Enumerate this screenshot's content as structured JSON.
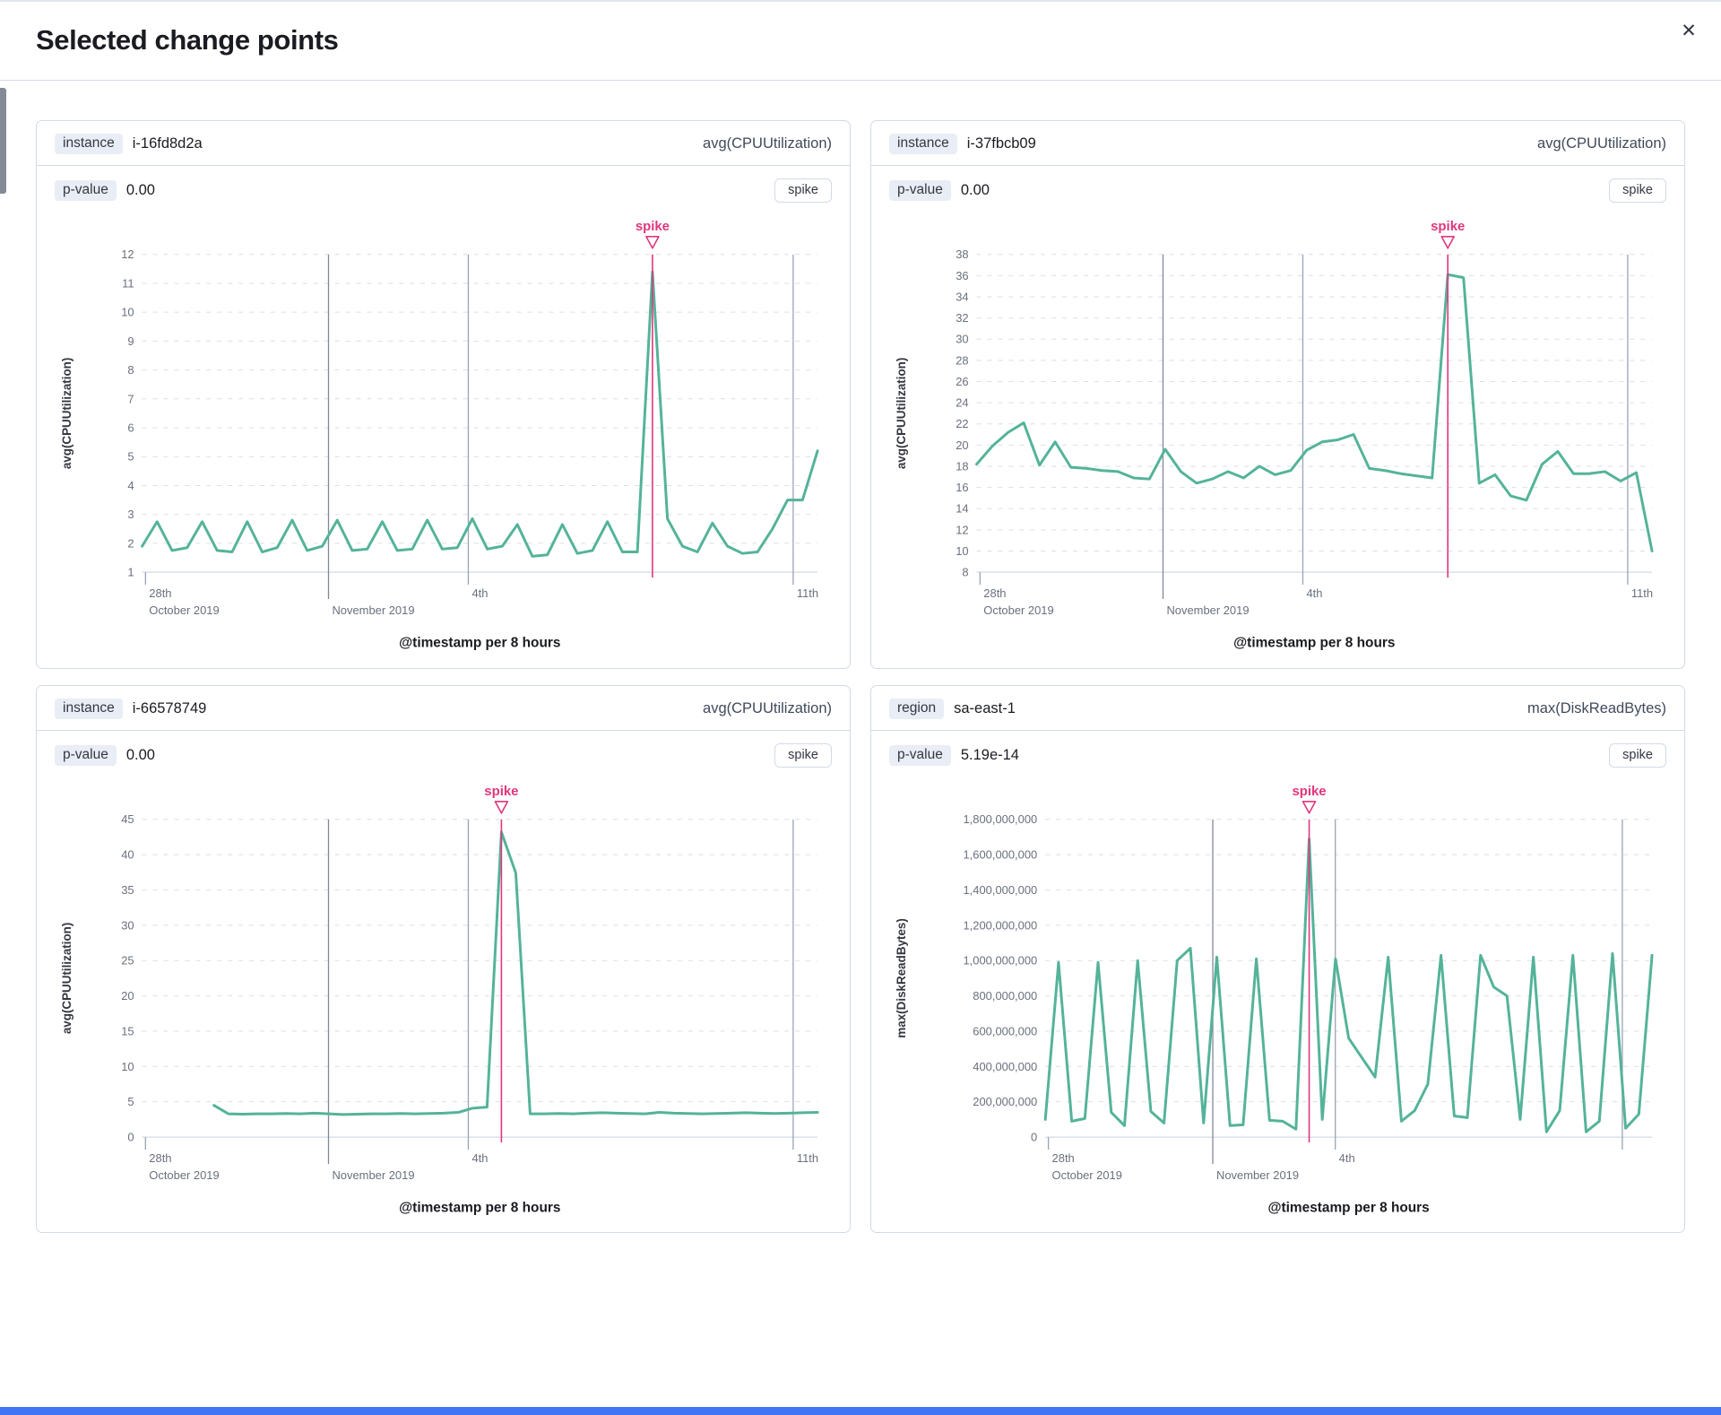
{
  "modal": {
    "title": "Selected change points",
    "close_icon": "✕"
  },
  "panels": [
    {
      "key_label": "instance",
      "key_value": "i-16fd8d2a",
      "metric": "avg(CPUUtilization)",
      "p_label": "p-value",
      "p_value": "0.00",
      "type_badge": "spike"
    },
    {
      "key_label": "instance",
      "key_value": "i-37fbcb09",
      "metric": "avg(CPUUtilization)",
      "p_label": "p-value",
      "p_value": "0.00",
      "type_badge": "spike"
    },
    {
      "key_label": "instance",
      "key_value": "i-66578749",
      "metric": "avg(CPUUtilization)",
      "p_label": "p-value",
      "p_value": "0.00",
      "type_badge": "spike"
    },
    {
      "key_label": "region",
      "key_value": "sa-east-1",
      "metric": "max(DiskReadBytes)",
      "p_label": "p-value",
      "p_value": "5.19e-14",
      "type_badge": "spike"
    }
  ],
  "colors": {
    "series_green": "#54b399",
    "annotation_pink": "#e0367e",
    "gridline": "#d9dee8",
    "axis_line": "#d3dae6",
    "month_line": "#82889a",
    "tick_line": "#9aa3b5",
    "tick_text": "#69707d",
    "axis_text": "#1a1c21",
    "bottom_bar_blue": "#4076f5",
    "left_sliver_gray": "#848a96"
  },
  "chart_data": [
    {
      "type": "line",
      "title": "",
      "series_name": "avg(CPUUtilization)",
      "ylabel": "avg(CPUUtilization)",
      "xlabel": "@timestamp per 8 hours",
      "ylim": [
        1,
        12
      ],
      "ytick_step": 1,
      "ytick_format": "plain",
      "grid": true,
      "legend": false,
      "xticks": [
        {
          "frac": 0.005,
          "line": false,
          "row1": "28th",
          "row2": "October 2019"
        },
        {
          "frac": 0.276,
          "line": true,
          "row2": "November 2019"
        },
        {
          "frac": 0.483,
          "line": true,
          "row1": "4th"
        },
        {
          "frac": 0.964,
          "line": true,
          "row1": "11th"
        }
      ],
      "values": [
        1.9,
        2.75,
        1.75,
        1.85,
        2.75,
        1.75,
        1.7,
        2.75,
        1.7,
        1.85,
        2.8,
        1.75,
        1.9,
        2.8,
        1.75,
        1.8,
        2.75,
        1.75,
        1.8,
        2.8,
        1.8,
        1.85,
        2.85,
        1.8,
        1.9,
        2.65,
        1.55,
        1.6,
        2.65,
        1.65,
        1.75,
        2.75,
        1.7,
        1.7,
        11.4,
        2.85,
        1.9,
        1.7,
        2.7,
        1.9,
        1.65,
        1.7,
        2.5,
        3.5,
        3.5,
        5.2
      ],
      "annotation": {
        "label": "spike",
        "index": 34
      }
    },
    {
      "type": "line",
      "title": "",
      "series_name": "avg(CPUUtilization)",
      "ylabel": "avg(CPUUtilization)",
      "xlabel": "@timestamp per 8 hours",
      "ylim": [
        8,
        38
      ],
      "ytick_step": 2,
      "ytick_format": "plain",
      "grid": true,
      "legend": false,
      "xticks": [
        {
          "frac": 0.005,
          "line": false,
          "row1": "28th",
          "row2": "October 2019"
        },
        {
          "frac": 0.276,
          "line": true,
          "row2": "November 2019"
        },
        {
          "frac": 0.483,
          "line": true,
          "row1": "4th"
        },
        {
          "frac": 0.964,
          "line": true,
          "row1": "11th"
        }
      ],
      "values": [
        18.2,
        19.9,
        21.2,
        22.1,
        18.1,
        20.3,
        17.9,
        17.8,
        17.6,
        17.5,
        16.9,
        16.8,
        19.6,
        17.5,
        16.4,
        16.8,
        17.5,
        16.9,
        18.0,
        17.2,
        17.6,
        19.5,
        20.3,
        20.5,
        21.0,
        17.8,
        17.6,
        17.3,
        17.1,
        16.9,
        36.1,
        35.8,
        16.4,
        17.2,
        15.2,
        14.8,
        18.2,
        19.4,
        17.3,
        17.3,
        17.5,
        16.6,
        17.4,
        10.0
      ],
      "annotation": {
        "label": "spike",
        "index": 30
      }
    },
    {
      "type": "line",
      "title": "",
      "series_name": "avg(CPUUtilization)",
      "ylabel": "avg(CPUUtilization)",
      "xlabel": "@timestamp per 8 hours",
      "ylim": [
        0,
        45
      ],
      "ytick_step": 5,
      "ytick_format": "plain",
      "grid": true,
      "legend": false,
      "xticks": [
        {
          "frac": 0.005,
          "line": false,
          "row1": "28th",
          "row2": "October 2019"
        },
        {
          "frac": 0.276,
          "line": true,
          "row2": "November 2019"
        },
        {
          "frac": 0.483,
          "line": true,
          "row1": "4th"
        },
        {
          "frac": 0.964,
          "line": true,
          "row1": "11th"
        }
      ],
      "values": [
        null,
        null,
        null,
        null,
        null,
        4.5,
        3.3,
        3.25,
        3.3,
        3.3,
        3.35,
        3.3,
        3.4,
        3.3,
        3.2,
        3.25,
        3.3,
        3.3,
        3.35,
        3.3,
        3.35,
        3.4,
        3.5,
        4.1,
        4.25,
        43.2,
        37.4,
        3.3,
        3.3,
        3.35,
        3.3,
        3.4,
        3.45,
        3.4,
        3.35,
        3.3,
        3.5,
        3.4,
        3.35,
        3.3,
        3.35,
        3.4,
        3.45,
        3.4,
        3.35,
        3.4,
        3.45,
        3.5
      ],
      "annotation": {
        "label": "spike",
        "index": 25
      }
    },
    {
      "type": "line",
      "title": "",
      "series_name": "max(DiskReadBytes)",
      "ylabel": "max(DiskReadBytes)",
      "xlabel": "@timestamp per 8 hours",
      "ylim": [
        0,
        1800000000
      ],
      "ytick_step": 200000000,
      "ytick_format": "comma",
      "grid": true,
      "legend": false,
      "xticks": [
        {
          "frac": 0.005,
          "line": false,
          "row1": "28th",
          "row2": "October 2019"
        },
        {
          "frac": 0.276,
          "line": true,
          "row2": "November 2019"
        },
        {
          "frac": 0.478,
          "line": true,
          "row1": "4th"
        },
        {
          "frac": 0.951,
          "line": true
        }
      ],
      "values": [
        100000000,
        990000000,
        90000000,
        105000000,
        990000000,
        140000000,
        65000000,
        1000000000,
        145000000,
        80000000,
        1000000000,
        1070000000,
        80000000,
        1020000000,
        65000000,
        70000000,
        1010000000,
        95000000,
        90000000,
        45000000,
        1690000000,
        100000000,
        1010000000,
        560000000,
        450000000,
        340000000,
        1020000000,
        90000000,
        150000000,
        300000000,
        1030000000,
        120000000,
        110000000,
        1030000000,
        850000000,
        800000000,
        100000000,
        1020000000,
        30000000,
        150000000,
        1030000000,
        30000000,
        90000000,
        1040000000,
        50000000,
        130000000,
        1030000000
      ],
      "annotation": {
        "label": "spike",
        "index": 20
      }
    }
  ]
}
